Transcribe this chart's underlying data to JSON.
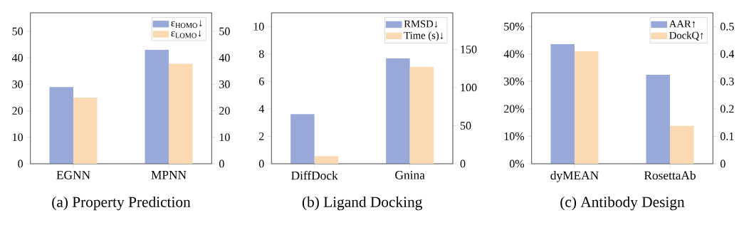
{
  "chart_data": [
    {
      "type": "bar",
      "title": "(a)  Property Prediction",
      "categories": [
        "EGNN",
        "MPNN"
      ],
      "series": [
        {
          "name": "ε$_{HOMO}$↓",
          "color": "#98a9d9",
          "values": [
            29,
            43
          ]
        },
        {
          "name": "ε$_{LOMO}$↓",
          "color": "#fbd9b3",
          "values": [
            25,
            37.8
          ],
          "axis": "y2"
        }
      ],
      "ylim": [
        0,
        57
      ],
      "yticks": [
        0,
        10,
        20,
        30,
        40,
        50
      ],
      "y2lim": [
        0,
        57
      ],
      "y2ticks": [
        0,
        10,
        20,
        30,
        40,
        50
      ],
      "legend": "top right"
    },
    {
      "type": "bar",
      "title": "(b)  Ligand Docking",
      "categories": [
        "DiffDock",
        "Gnina"
      ],
      "series": [
        {
          "name": "RMSD↓",
          "color": "#98a9d9",
          "values": [
            3.62,
            7.68
          ]
        },
        {
          "name": "Time (s)↓",
          "color": "#fbd9b3",
          "values": [
            10,
            127
          ],
          "axis": "y2"
        }
      ],
      "ylim": [
        0,
        11
      ],
      "yticks": [
        0,
        2,
        4,
        6,
        8,
        10
      ],
      "y2lim": [
        0,
        198
      ],
      "y2ticks": [
        0,
        50,
        100,
        150
      ],
      "legend": "top right"
    },
    {
      "type": "bar",
      "title": "(c)  Antibody Design",
      "categories": [
        "dyMEAN",
        "RosettaAb"
      ],
      "series": [
        {
          "name": "AAR↑",
          "color": "#98a9d9",
          "values": [
            43.6,
            32.4
          ]
        },
        {
          "name": "DockQ↑",
          "color": "#fbd9b3",
          "values": [
            0.41,
            0.138
          ],
          "axis": "y2"
        }
      ],
      "ylim": [
        0,
        55
      ],
      "yticks": [
        {
          "value": 0,
          "label": "0%"
        },
        {
          "value": 10,
          "label": "10%"
        },
        {
          "value": 20,
          "label": "20%"
        },
        {
          "value": 30,
          "label": "30%"
        },
        {
          "value": 40,
          "label": "40%"
        },
        {
          "value": 50,
          "label": "50%"
        }
      ],
      "y2lim": [
        0,
        0.55
      ],
      "y2ticks": [
        0,
        0.1,
        0.2,
        0.3,
        0.4,
        0.5
      ],
      "legend": "top right"
    }
  ]
}
